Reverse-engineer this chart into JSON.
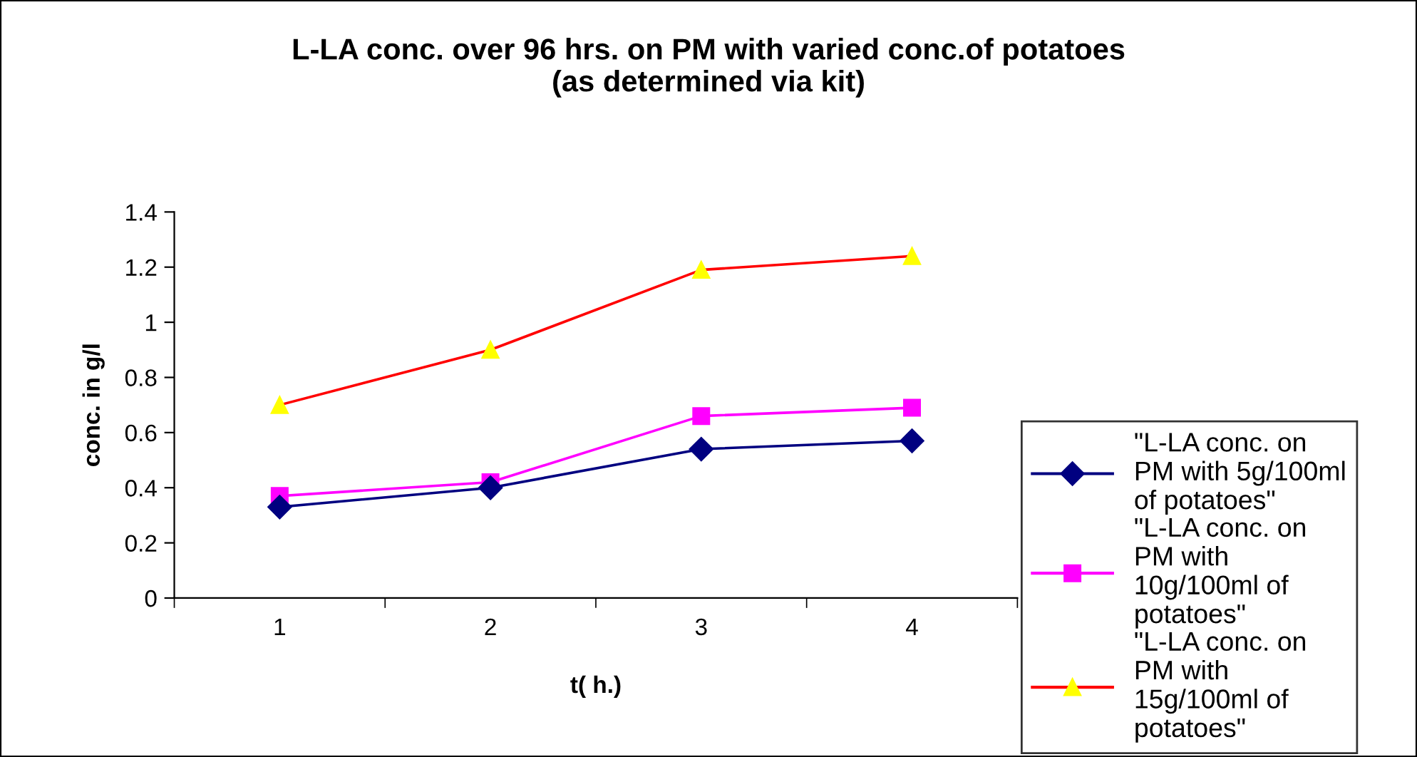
{
  "chart_data": {
    "type": "line",
    "title": "L-LA conc. over 96 hrs. on PM with varied conc.of potatoes\n(as determined via kit)",
    "xlabel": "t( h.)",
    "ylabel": "conc. in g/l",
    "categories": [
      "1",
      "2",
      "3",
      "4"
    ],
    "series": [
      {
        "name": "\"L-LA conc. on PM with 5g/100ml of potatoes\"",
        "color": "#000080",
        "marker": "diamond",
        "values": [
          0.33,
          0.4,
          0.54,
          0.57
        ]
      },
      {
        "name": "\"L-LA conc. on PM with 10g/100ml of potatoes\"",
        "color": "#ff00ff",
        "marker": "square",
        "values": [
          0.37,
          0.42,
          0.66,
          0.69
        ]
      },
      {
        "name": "\"L-LA conc. on PM with 15g/100ml of potatoes\"",
        "color": "#ff0000",
        "colors": [
          "#ffff00",
          "#ffff00",
          "#ffff00",
          "#ffff00"
        ],
        "marker": "triangle",
        "values": [
          0.7,
          0.9,
          1.19,
          1.24
        ]
      }
    ],
    "ylim": [
      0,
      1.4
    ],
    "yticks": [
      0,
      0.2,
      0.4,
      0.6,
      0.8,
      1,
      1.2,
      1.4
    ],
    "grid": false,
    "legend": "right",
    "line_style": "solid"
  }
}
